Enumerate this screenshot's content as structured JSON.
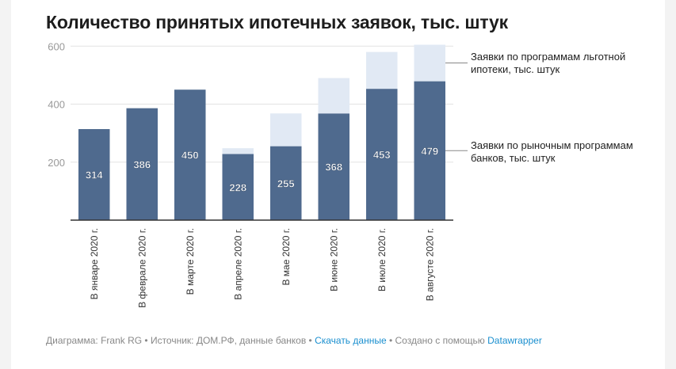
{
  "chart_data": {
    "type": "bar",
    "stacked": true,
    "title": "Количество принятых ипотечных заявок, тыс. штук",
    "categories": [
      "В январе 2020 г.",
      "В феврале 2020 г.",
      "В марте 2020 г.",
      "В апреле 2020 г.",
      "В мае 2020 г.",
      "В июне 2020 г.",
      "В июле 2020 г.",
      "В августе 2020 г."
    ],
    "series": [
      {
        "name": "Заявки по рыночным программам банков, тыс. штук",
        "color": "#4f6a8e",
        "values": [
          314,
          386,
          450,
          228,
          255,
          368,
          453,
          479
        ],
        "labels_shown": true
      },
      {
        "name": "Заявки по программам льготной ипотеки, тыс. штук",
        "color": "#e1e9f4",
        "values": [
          0,
          0,
          0,
          20,
          113,
          122,
          127,
          126
        ],
        "labels_shown": false
      }
    ],
    "yticks": [
      200,
      400,
      600
    ],
    "ylim": [
      0,
      600
    ],
    "grid": true,
    "legend_placement": "right, inline"
  },
  "footer": {
    "prefix": "Диаграмма: Frank RG • Источник: ДОМ.РФ, данные банков • ",
    "download_link": "Скачать данные",
    "middle": " • Создано с помощью ",
    "datawrapper_link": "Datawrapper"
  }
}
